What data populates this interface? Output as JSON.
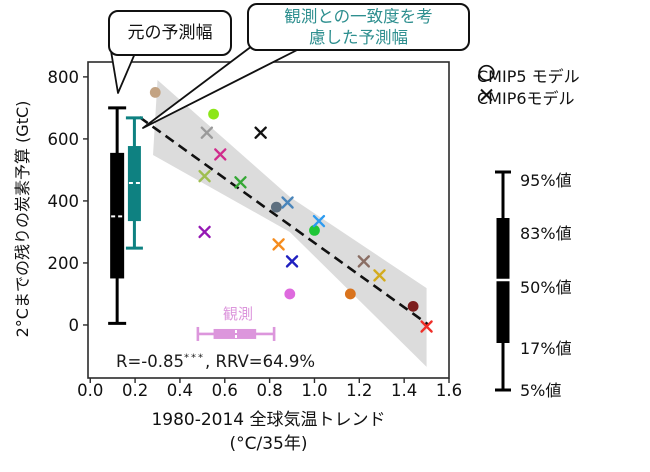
{
  "figure": {
    "callout_original": {
      "text": "元の予測幅"
    },
    "callout_constrained": {
      "line1": "観測との一致度を考",
      "line2": "慮した予測幅",
      "color": "#2E8F8F"
    },
    "r_stats": {
      "prefix": "R=-0.85",
      "sup": "***",
      "suffix": ", RRV=64.9%"
    }
  },
  "legend": {
    "cmip5_label": "CMIP5 モデル",
    "cmip6_label": "CMIP6モデル",
    "percentiles": [
      "95%値",
      "83%値",
      "50%値",
      "17%値",
      "5%値"
    ]
  },
  "chart_data": {
    "type": "scatter",
    "xlabel_line1": "1980-2014 全球気温トレンド",
    "xlabel_line2": "(°C/35年)",
    "ylabel": "2°Cまでの残りの炭素予算 (GtC)",
    "xlim": [
      -0.01,
      1.6
    ],
    "ylim": [
      -171,
      848
    ],
    "xticks": [
      0.0,
      0.2,
      0.4,
      0.6,
      0.8,
      1.0,
      1.2,
      1.4,
      1.6
    ],
    "xtick_labels": [
      "0.0",
      "0.2",
      "0.4",
      "0.6",
      "0.8",
      "1.0",
      "1.2",
      "1.4",
      "1.6"
    ],
    "yticks": [
      0,
      200,
      400,
      600,
      800
    ],
    "ytick_labels": [
      "0",
      "200",
      "400",
      "600",
      "800"
    ],
    "grid": false,
    "series": [
      {
        "name": "CMIP5 モデル",
        "marker": "circle",
        "points": [
          {
            "x": 0.29,
            "y": 750,
            "color": "#c3a383"
          },
          {
            "x": 0.55,
            "y": 680,
            "color": "#8ce619"
          },
          {
            "x": 0.83,
            "y": 380,
            "color": "#5d6f7f"
          },
          {
            "x": 1.0,
            "y": 305,
            "color": "#1fc637"
          },
          {
            "x": 0.89,
            "y": 100,
            "color": "#de6ade"
          },
          {
            "x": 1.16,
            "y": 100,
            "color": "#d9731d"
          },
          {
            "x": 1.44,
            "y": 60,
            "color": "#7c1d1d"
          }
        ]
      },
      {
        "name": "CMIP6モデル",
        "marker": "x",
        "points": [
          {
            "x": 0.52,
            "y": 620,
            "color": "#9a9a9a"
          },
          {
            "x": 0.76,
            "y": 620,
            "color": "#111111"
          },
          {
            "x": 0.58,
            "y": 550,
            "color": "#d02c8c"
          },
          {
            "x": 0.51,
            "y": 480,
            "color": "#9fbe50"
          },
          {
            "x": 0.67,
            "y": 460,
            "color": "#36a836"
          },
          {
            "x": 0.88,
            "y": 395,
            "color": "#4a85ba"
          },
          {
            "x": 1.02,
            "y": 335,
            "color": "#2d9bf0"
          },
          {
            "x": 0.51,
            "y": 300,
            "color": "#9518b4"
          },
          {
            "x": 0.84,
            "y": 260,
            "color": "#f58c1e"
          },
          {
            "x": 0.9,
            "y": 205,
            "color": "#2020c0"
          },
          {
            "x": 1.22,
            "y": 205,
            "color": "#8a6e64"
          },
          {
            "x": 1.29,
            "y": 160,
            "color": "#d3ab1e"
          },
          {
            "x": 1.5,
            "y": -5,
            "color": "#ef2f28"
          }
        ]
      }
    ],
    "trend_line": {
      "x1": 0.22,
      "y1": 670,
      "x2": 1.51,
      "y2": 0,
      "style": "dashed",
      "color": "#111111"
    },
    "confidence_band": {
      "color": "#dcdcdc",
      "polygon": [
        [
          0.3,
          790
        ],
        [
          0.89,
          413
        ],
        [
          1.5,
          119
        ],
        [
          1.5,
          -135
        ],
        [
          0.89,
          300
        ],
        [
          0.28,
          548
        ]
      ]
    },
    "boxplots": [
      {
        "name": "original-projection",
        "orientation": "vertical",
        "pos": 0.12,
        "p5": 5,
        "p17": 150,
        "p50": 350,
        "p83": 555,
        "p95": 700,
        "color": "#000000"
      },
      {
        "name": "constrained-projection",
        "orientation": "vertical",
        "pos": 0.197,
        "p5": 248,
        "p17": 335,
        "p50": 458,
        "p83": 577,
        "p95": 668,
        "color": "#0e8181"
      },
      {
        "name": "observation",
        "label": "観測",
        "orientation": "horizontal",
        "pos": -29,
        "p5": 0.48,
        "p17": 0.55,
        "p50": 0.65,
        "p83": 0.74,
        "p95": 0.82,
        "color": "#dc96dc"
      }
    ],
    "annotation_stats": "R=-0.85***, RRV=64.9%"
  }
}
